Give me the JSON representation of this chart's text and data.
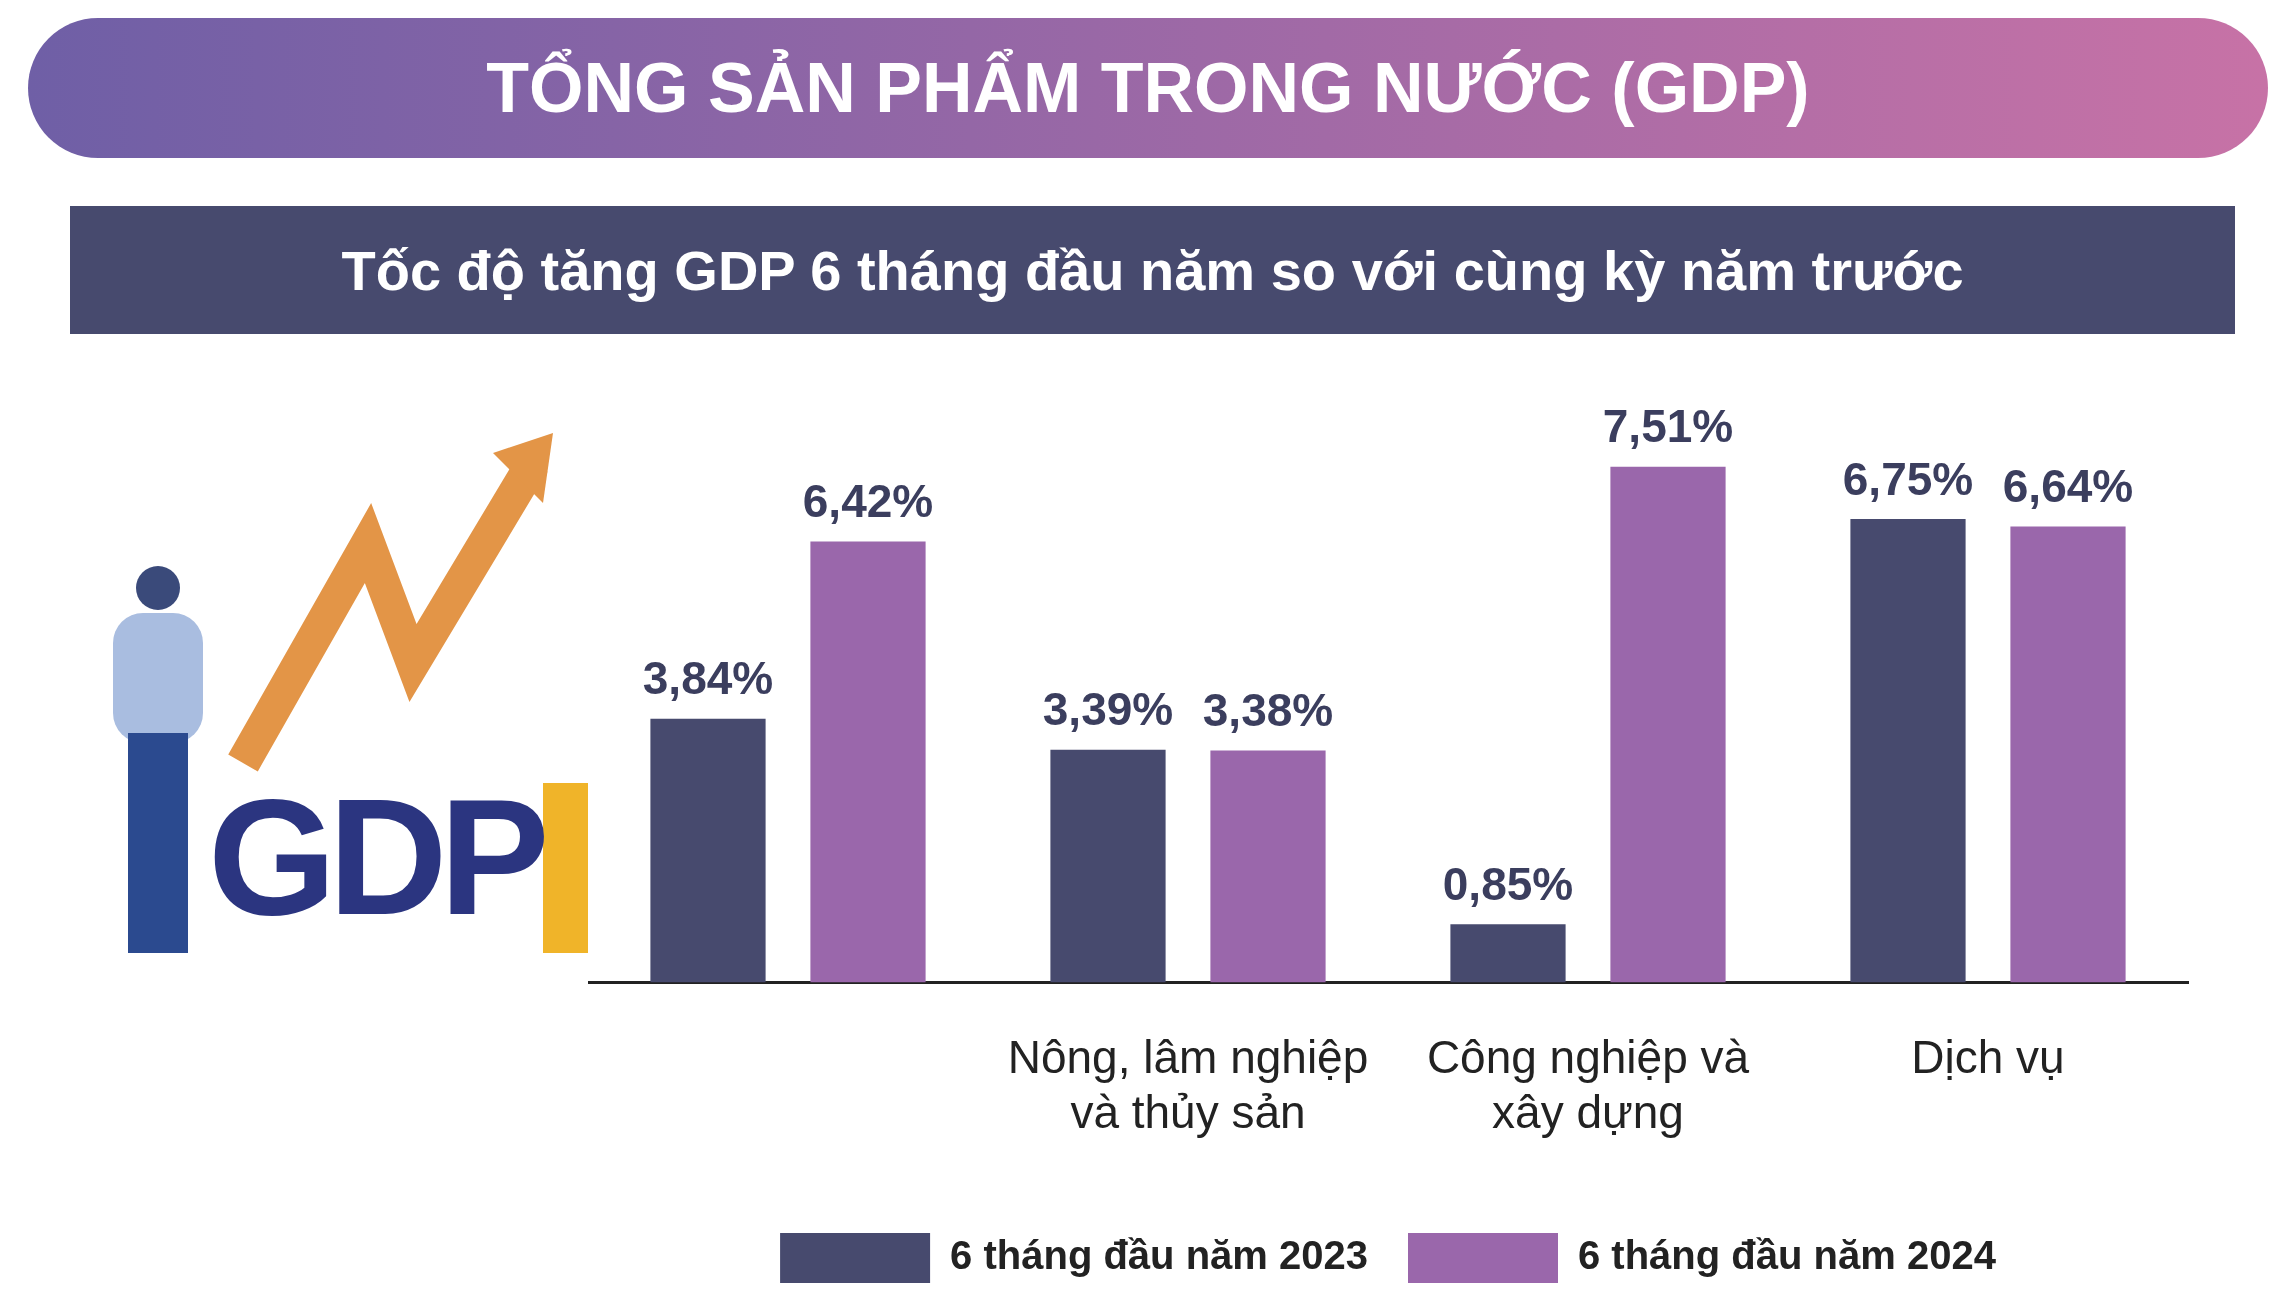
{
  "chart_data": {
    "type": "bar",
    "title": "TỔNG SẢN PHẨM TRONG NƯỚC (GDP)",
    "subtitle": "Tốc độ tăng GDP 6 tháng đầu năm so với cùng kỳ năm trước",
    "categories": [
      null,
      "Nông, lâm nghiệp và thủy sản",
      "Công nghiệp và xây dựng",
      "Dịch vụ"
    ],
    "series": [
      {
        "name": "6 tháng đầu năm 2023",
        "color": "#474a6e",
        "values": [
          3.84,
          3.39,
          0.85,
          6.75
        ],
        "value_labels": [
          "3,84%",
          "3,39%",
          "0,85%",
          "6,75%"
        ]
      },
      {
        "name": "6 tháng đầu năm 2024",
        "color": "#9a67ab",
        "values": [
          6.42,
          3.38,
          7.51,
          6.64
        ],
        "value_labels": [
          "6,42%",
          "3,38%",
          "7,51%",
          "6,64%"
        ]
      }
    ],
    "tick_labels": "x",
    "grid": false,
    "legend": "bottom",
    "annotations": [
      "GDP"
    ]
  }
}
